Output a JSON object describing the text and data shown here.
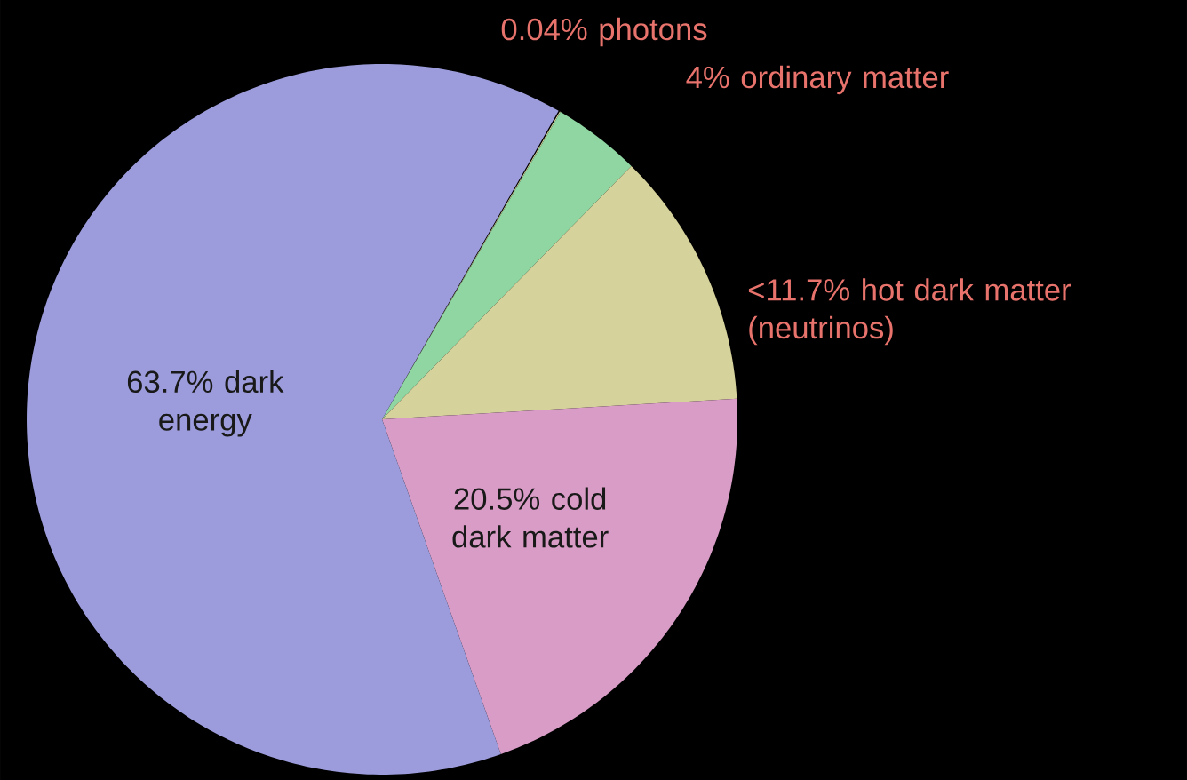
{
  "chart_data": {
    "type": "pie",
    "categories": [
      "photons",
      "ordinary matter",
      "hot dark matter (neutrinos)",
      "cold dark matter",
      "dark energy"
    ],
    "values": [
      0.04,
      4,
      11.7,
      20.5,
      63.7
    ],
    "value_labels": [
      "0.04%",
      "4%",
      "<11.7%",
      "20.5%",
      "63.7%"
    ],
    "colors": [
      "#e8e0a0",
      "#8fd6a2",
      "#d6d29c",
      "#d89cc6",
      "#9c9cdc"
    ]
  }
}
